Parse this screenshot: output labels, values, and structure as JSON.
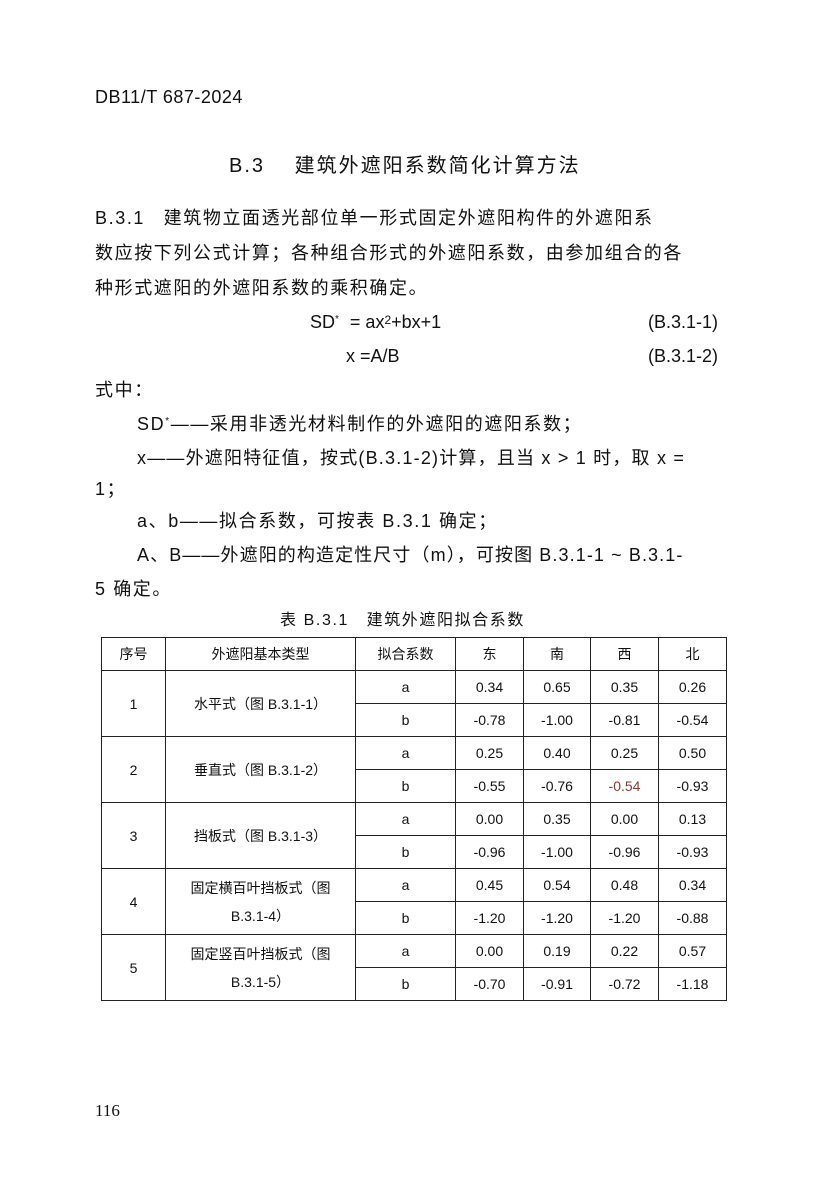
{
  "header": {
    "doc_id": "DB11/T 687-2024"
  },
  "section": {
    "number": "B.3",
    "title": "建筑外遮阳系数简化计算方法"
  },
  "clause": {
    "number": "B.3.1",
    "lines": [
      "建筑物立面透光部位单一形式固定外遮阳构件的外遮阳系",
      "数应按下列公式计算；各种组合形式的外遮阳系数，由参加组合的各",
      "种形式遮阳的外遮阳系数的乘积确定。"
    ]
  },
  "formulas": [
    {
      "lhs": "SD",
      "sup": "*",
      "rhs": " = ax",
      "rhs_sup": "2",
      "rhs_tail": "+bx+1",
      "label": "(B.3.1-1)"
    },
    {
      "lhs": "x",
      "rhs": " =A/B",
      "label": "(B.3.1-2)"
    }
  ],
  "where": {
    "intro": "式中：",
    "items": [
      {
        "sym": "SD",
        "sup": "*",
        "text": "——采用非透光材料制作的外遮阳的遮阳系数；"
      },
      {
        "sym": "x",
        "text": "——外遮阳特征值，按式(B.3.1-2)计算，且当 x > 1 时，取 x =",
        "cont": "1；"
      },
      {
        "sym": "a、b",
        "text": "——拟合系数，可按表 B.3.1 确定；"
      },
      {
        "sym": "A、B",
        "text": "——外遮阳的构造定性尺寸（m），可按图 B.3.1-1 ~ B.3.1-",
        "cont": "5 确定。"
      }
    ]
  },
  "table": {
    "caption": "表 B.3.1　建筑外遮阳拟合系数",
    "headers": [
      "序号",
      "外遮阳基本类型",
      "拟合系数",
      "东",
      "南",
      "西",
      "北"
    ],
    "rows": [
      {
        "no": "1",
        "type": "水平式（图 B.3.1-1）",
        "type2": "",
        "a": [
          "0.34",
          "0.65",
          "0.35",
          "0.26"
        ],
        "b": [
          "-0.78",
          "-1.00",
          "-0.81",
          "-0.54"
        ]
      },
      {
        "no": "2",
        "type": "垂直式（图 B.3.1-2）",
        "type2": "",
        "a": [
          "0.25",
          "0.40",
          "0.25",
          "0.50"
        ],
        "b": [
          "-0.55",
          "-0.76",
          "-0.54",
          "-0.93"
        ]
      },
      {
        "no": "3",
        "type": "挡板式（图 B.3.1-3）",
        "type2": "",
        "a": [
          "0.00",
          "0.35",
          "0.00",
          "0.13"
        ],
        "b": [
          "-0.96",
          "-1.00",
          "-0.96",
          "-0.93"
        ]
      },
      {
        "no": "4",
        "type": "固定横百叶挡板式（图",
        "type2": "B.3.1-4）",
        "a": [
          "0.45",
          "0.54",
          "0.48",
          "0.34"
        ],
        "b": [
          "-1.20",
          "-1.20",
          "-1.20",
          "-0.88"
        ]
      },
      {
        "no": "5",
        "type": "固定竖百叶挡板式（图",
        "type2": "B.3.1-5）",
        "a": [
          "0.00",
          "0.19",
          "0.22",
          "0.57"
        ],
        "b": [
          "-0.70",
          "-0.91",
          "-0.72",
          "-1.18"
        ]
      }
    ],
    "coef_labels": [
      "a",
      "b"
    ],
    "highlight_color": "#8a3a30"
  },
  "footer": {
    "page_number": "116"
  }
}
